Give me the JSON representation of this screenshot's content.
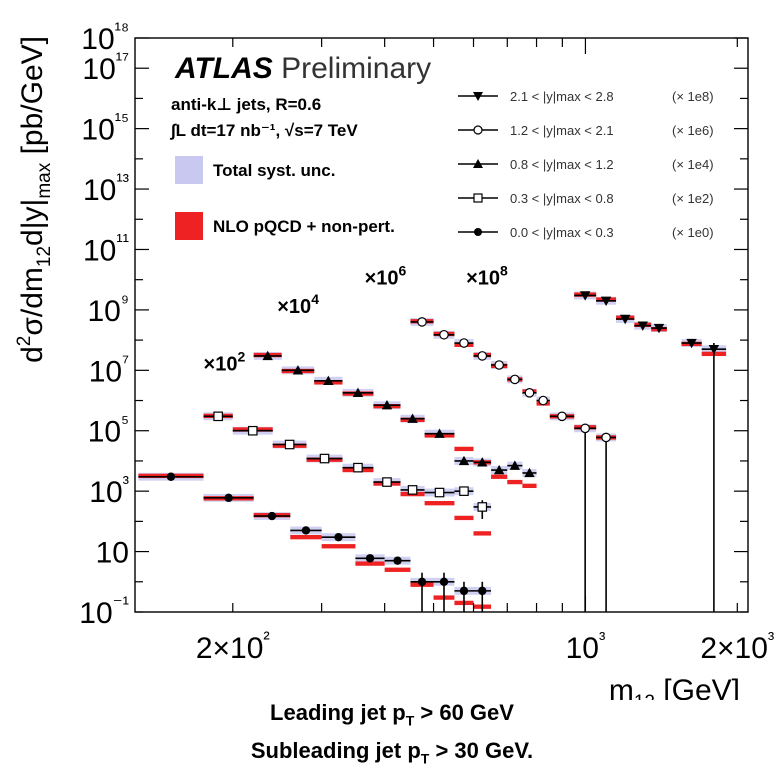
{
  "chart_data": {
    "type": "scatter",
    "title": "ATLAS Preliminary",
    "title_bold_part": "ATLAS",
    "title_light_part": "Preliminary",
    "xlabel": "m12 [GeV]",
    "ylabel": "d2σ/dm12d|y|max [pb/GeV]",
    "x_scale": "log",
    "y_scale": "log",
    "xlim": [
      128,
      2100
    ],
    "ylim": [
      0.1,
      1e+18
    ],
    "x_ticks": [
      {
        "value": 200,
        "label": "2×10²"
      },
      {
        "value": 1000,
        "label": "10³"
      },
      {
        "value": 2000,
        "label": "2×10³"
      }
    ],
    "y_ticks": [
      {
        "value": 0.1,
        "label": "10⁻¹"
      },
      {
        "value": 10,
        "label": "10"
      },
      {
        "value": 1000,
        "label": "10³"
      },
      {
        "value": 100000,
        "label": "10⁵"
      },
      {
        "value": 10000000,
        "label": "10⁷"
      },
      {
        "value": 1000000000,
        "label": "10⁹"
      },
      {
        "value": 100000000000,
        "label": "10¹¹"
      },
      {
        "value": 10000000000000,
        "label": "10¹³"
      },
      {
        "value": 1000000000000000,
        "label": "10¹⁵"
      },
      {
        "value": 100000000000000000,
        "label": "10¹⁷"
      },
      {
        "value": 1000000000000000000,
        "label": "10¹⁸"
      }
    ],
    "info_lines": [
      "anti-k⊥ jets,  R=0.6",
      "∫L dt=17 nb⁻¹, √s=7 TeV"
    ],
    "band_legend": [
      {
        "label": "Total syst. unc.",
        "color": "#c8c8f0"
      },
      {
        "label": "NLO pQCD + non-pert.",
        "color": "#ee2222"
      }
    ],
    "legend_position": "top-right",
    "series": [
      {
        "name": "2.1 < |y|max < 2.8",
        "scale_label": "(× 1e8)",
        "marker": "triangle-down",
        "bins": [
          [
            950,
            1050
          ],
          [
            1050,
            1150
          ],
          [
            1150,
            1250
          ],
          [
            1250,
            1350
          ],
          [
            1350,
            1450
          ],
          [
            1550,
            1700
          ],
          [
            1700,
            1900
          ]
        ],
        "values": [
          3000000000,
          2000000000,
          500000000,
          300000000,
          250000000,
          80000000,
          50000000
        ],
        "err_low": [
          3500000000,
          2400000000,
          600000000,
          360000000,
          300000000,
          96000000,
          0.1
        ],
        "err_high": [
          3500000000,
          2400000000,
          600000000,
          360000000,
          300000000,
          96000000,
          80000000
        ],
        "theory": [
          3200000000,
          2200000000,
          550000000,
          320000000,
          230000000,
          75000000,
          35000000
        ]
      },
      {
        "name": "1.2 < |y|max < 2.1",
        "scale_label": "(× 1e6)",
        "marker": "circle-open",
        "bins": [
          [
            450,
            500
          ],
          [
            500,
            550
          ],
          [
            550,
            600
          ],
          [
            600,
            650
          ],
          [
            650,
            700
          ],
          [
            700,
            750
          ],
          [
            750,
            800
          ],
          [
            800,
            850
          ],
          [
            850,
            950
          ],
          [
            950,
            1050
          ],
          [
            1050,
            1150
          ]
        ],
        "values": [
          400000000,
          150000000,
          80000000,
          30000000,
          15000000,
          5000000,
          1800000,
          1000000,
          300000,
          120000,
          60000
        ],
        "err_low": [
          400000000,
          150000000,
          80000000,
          30000000,
          15000000,
          5000000,
          1800000,
          1000000,
          240000,
          0.1,
          0.1
        ],
        "err_high": [
          400000000,
          150000000,
          80000000,
          30000000,
          15000000,
          5000000,
          1800000,
          1000000,
          360000,
          150000,
          80000
        ],
        "theory": [
          420000000,
          160000000,
          70000000,
          32000000,
          14000000,
          5000000,
          2000000,
          800000,
          300000,
          130000,
          60000
        ]
      },
      {
        "name": "0.8 < |y|max < 1.2",
        "scale_label": "(× 1e4)",
        "marker": "triangle-up",
        "bins": [
          [
            220,
            250
          ],
          [
            250,
            290
          ],
          [
            290,
            330
          ],
          [
            330,
            380
          ],
          [
            380,
            430
          ],
          [
            430,
            480
          ],
          [
            480,
            550
          ],
          [
            550,
            600
          ],
          [
            600,
            650
          ],
          [
            650,
            700
          ],
          [
            700,
            750
          ],
          [
            750,
            800
          ]
        ],
        "values": [
          30000000,
          10000000,
          4500000,
          1800000,
          700000,
          250000,
          80000,
          10000,
          9000,
          5000,
          7000,
          4000
        ],
        "err_low": [
          30000000,
          10000000,
          4500000,
          1800000,
          700000,
          250000,
          80000,
          8000,
          7200,
          4000,
          5600,
          3200
        ],
        "err_high": [
          30000000,
          10000000,
          4500000,
          1800000,
          700000,
          250000,
          80000,
          12000,
          10800,
          6000,
          8400,
          4800
        ],
        "theory": [
          32000000,
          9500000,
          4000000,
          1700000,
          650000,
          230000,
          70000,
          25000,
          9000,
          3000,
          2000,
          1500
        ]
      },
      {
        "name": "0.3 < |y|max < 0.8",
        "scale_label": "(× 1e2)",
        "marker": "square-open",
        "bins": [
          [
            175,
            200
          ],
          [
            200,
            240
          ],
          [
            240,
            280
          ],
          [
            280,
            330
          ],
          [
            330,
            380
          ],
          [
            380,
            430
          ],
          [
            430,
            480
          ],
          [
            480,
            550
          ],
          [
            550,
            600
          ],
          [
            600,
            650
          ]
        ],
        "values": [
          300000,
          100000,
          35000,
          12000,
          6000,
          2000,
          1100,
          900,
          1000,
          300
        ],
        "err_low": [
          300000,
          100000,
          35000,
          12000,
          6000,
          2000,
          1100,
          900,
          1000,
          120
        ],
        "err_high": [
          300000,
          100000,
          35000,
          12000,
          6000,
          2000,
          1100,
          900,
          1000,
          500
        ],
        "theory": [
          310000,
          110000,
          32000,
          11000,
          5000,
          1800,
          800,
          400,
          130,
          40
        ]
      },
      {
        "name": "0.0 < |y|max < 0.3",
        "scale_label": "(× 1e0)",
        "marker": "circle-filled",
        "bins": [
          [
            130,
            175
          ],
          [
            175,
            220
          ],
          [
            220,
            260
          ],
          [
            260,
            300
          ],
          [
            300,
            350
          ],
          [
            350,
            400
          ],
          [
            400,
            450
          ],
          [
            450,
            500
          ],
          [
            500,
            550
          ],
          [
            550,
            600
          ],
          [
            600,
            650
          ]
        ],
        "values": [
          3000,
          600,
          150,
          50,
          30,
          6,
          5,
          1,
          1,
          0.5,
          0.5
        ],
        "err_low": [
          3000,
          600,
          150,
          50,
          30,
          6,
          5,
          0.1,
          0.1,
          0.1,
          0.1
        ],
        "err_high": [
          3000,
          600,
          150,
          50,
          30,
          6,
          5,
          2,
          2,
          1,
          1
        ],
        "theory": [
          3200,
          580,
          160,
          30,
          15,
          4,
          2.5,
          0.8,
          0.3,
          0.2,
          0.15
        ]
      }
    ],
    "annotations": [
      {
        "text": "×10",
        "exp": "2",
        "x": 175,
        "y": 10000000
      },
      {
        "text": "×10",
        "exp": "4",
        "x": 245,
        "y": 800000000
      },
      {
        "text": "×10",
        "exp": "6",
        "x": 365,
        "y": 7000000000
      },
      {
        "text": "×10",
        "exp": "8",
        "x": 580,
        "y": 7000000000
      }
    ]
  },
  "footnotes": {
    "line1_prefix": "Leading jet p",
    "line1_sub": "T",
    "line1_suffix": " > 60 GeV",
    "line2_prefix": "Subleading jet p",
    "line2_sub": "T",
    "line2_suffix": " > 30 GeV."
  },
  "colors": {
    "theory": "#ee2222",
    "syst_band": "#c8c8f0",
    "data": "#000000",
    "axis": "#000000"
  }
}
